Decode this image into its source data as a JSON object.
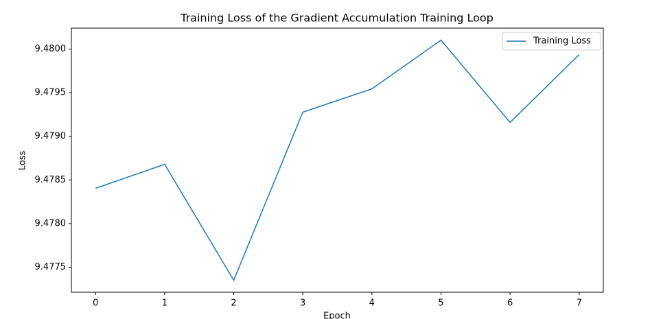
{
  "chart_data": {
    "type": "line",
    "title": "Training Loss of the Gradient Accumulation Training Loop",
    "x_label": "Epoch",
    "y_label": "Loss",
    "x": [
      0,
      1,
      2,
      3,
      4,
      5,
      6,
      7
    ],
    "series": [
      {
        "name": "Training Loss",
        "color": "#1f77b4",
        "values": [
          9.478404,
          9.478679,
          9.477351,
          9.479277,
          9.479544,
          9.480102,
          9.479159,
          9.479937
        ]
      }
    ],
    "xlim": [
      -0.35,
      7.35
    ],
    "xticks": [
      0,
      1,
      2,
      3,
      4,
      5,
      6,
      7
    ],
    "ylim": [
      9.477213,
      9.48024
    ],
    "yticks": [
      9.4775,
      {
        "value": 9.478,
        "label": "9.4780"
      },
      9.4785,
      {
        "value": 9.479,
        "label": "9.4790"
      },
      9.4795,
      {
        "value": 9.48,
        "label": "9.4800"
      }
    ],
    "grid": false,
    "legend": "upper right"
  }
}
